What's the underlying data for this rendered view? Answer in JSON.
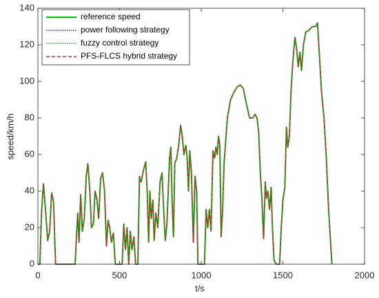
{
  "chart_data": {
    "type": "line",
    "xlabel": "t/s",
    "ylabel": "speed/km/h",
    "xlim": [
      0,
      2000
    ],
    "xticks": [
      0,
      500,
      1000,
      1500,
      2000
    ],
    "ylim": [
      0,
      140
    ],
    "yticks": [
      0,
      20,
      40,
      60,
      80,
      100,
      120,
      140
    ],
    "grid": false,
    "legend": "upper left",
    "x": [
      0,
      12,
      22,
      34,
      48,
      60,
      72,
      84,
      96,
      108,
      228,
      236,
      244,
      252,
      262,
      272,
      284,
      296,
      306,
      318,
      328,
      340,
      350,
      362,
      372,
      384,
      396,
      408,
      420,
      430,
      440,
      450,
      462,
      474,
      516,
      526,
      536,
      546,
      556,
      566,
      576,
      588,
      598,
      612,
      622,
      632,
      648,
      660,
      670,
      678,
      686,
      694,
      704,
      712,
      722,
      734,
      748,
      760,
      770,
      780,
      790,
      806,
      814,
      822,
      830,
      838,
      850,
      862,
      874,
      884,
      894,
      906,
      914,
      922,
      930,
      940,
      952,
      962,
      972,
      980,
      1020,
      1030,
      1040,
      1050,
      1060,
      1072,
      1082,
      1090,
      1098,
      1106,
      1114,
      1122,
      1130,
      1140,
      1160,
      1180,
      1200,
      1220,
      1240,
      1258,
      1276,
      1296,
      1316,
      1330,
      1342,
      1352,
      1362,
      1372,
      1382,
      1392,
      1400,
      1408,
      1418,
      1428,
      1436,
      1446,
      1460,
      1480,
      1490,
      1500,
      1512,
      1522,
      1530,
      1540,
      1550,
      1562,
      1574,
      1584,
      1594,
      1604,
      1614,
      1626,
      1640,
      1660,
      1680,
      1700,
      1712,
      1720,
      1736,
      1752,
      1766,
      1780,
      1800
    ],
    "series": [
      {
        "name": "reference speed",
        "color": "#00c800",
        "style": "solid",
        "values": [
          0,
          0,
          28,
          44,
          28,
          13,
          18,
          39,
          34,
          0,
          0,
          15,
          28,
          12,
          38,
          18,
          25,
          48,
          55,
          40,
          20,
          22,
          40,
          35,
          25,
          47,
          50,
          40,
          10,
          24,
          20,
          12,
          17,
          0,
          0,
          22,
          8,
          20,
          0,
          18,
          8,
          15,
          0,
          0,
          48,
          45,
          52,
          56,
          38,
          12,
          40,
          25,
          35,
          13,
          28,
          20,
          45,
          50,
          30,
          13,
          22,
          58,
          64,
          34,
          15,
          55,
          58,
          65,
          76,
          70,
          60,
          65,
          58,
          40,
          62,
          50,
          12,
          48,
          40,
          0,
          0,
          30,
          20,
          30,
          18,
          62,
          58,
          64,
          60,
          70,
          65,
          15,
          28,
          55,
          80,
          90,
          94,
          97,
          98,
          96,
          88,
          80,
          80,
          82,
          80,
          72,
          50,
          35,
          14,
          45,
          36,
          40,
          30,
          42,
          20,
          2,
          0,
          0,
          20,
          35,
          42,
          75,
          64,
          70,
          95,
          112,
          124,
          118,
          108,
          116,
          106,
          120,
          127,
          128,
          130,
          130,
          132,
          120,
          95,
          80,
          58,
          30,
          0
        ]
      },
      {
        "name": "power following strategy",
        "color": "#1a1aa8",
        "style": "dotted",
        "values": [
          0,
          0,
          28,
          44,
          28,
          13,
          18,
          39,
          34,
          0,
          0,
          15,
          28,
          12,
          38,
          18,
          25,
          48,
          55,
          40,
          20,
          22,
          40,
          35,
          25,
          47,
          50,
          40,
          10,
          24,
          20,
          12,
          17,
          0,
          0,
          22,
          8,
          20,
          0,
          18,
          8,
          15,
          0,
          0,
          48,
          45,
          52,
          56,
          38,
          12,
          40,
          25,
          35,
          13,
          28,
          20,
          45,
          50,
          30,
          13,
          22,
          58,
          64,
          34,
          15,
          55,
          58,
          65,
          76,
          70,
          60,
          65,
          58,
          40,
          62,
          50,
          12,
          48,
          40,
          0,
          0,
          30,
          20,
          30,
          18,
          62,
          58,
          64,
          60,
          70,
          65,
          15,
          28,
          55,
          80,
          90,
          94,
          97,
          98,
          96,
          88,
          80,
          80,
          82,
          80,
          72,
          50,
          35,
          14,
          45,
          36,
          40,
          30,
          42,
          20,
          2,
          0,
          0,
          20,
          35,
          42,
          75,
          64,
          70,
          95,
          112,
          124,
          118,
          108,
          116,
          106,
          120,
          127,
          128,
          130,
          130,
          132,
          120,
          95,
          80,
          58,
          30,
          0
        ]
      },
      {
        "name": "fuzzy control strategy",
        "color": "#2ea02e",
        "style": "dotted",
        "values": [
          0,
          0,
          28,
          44,
          28,
          13,
          18,
          39,
          34,
          0,
          0,
          15,
          28,
          12,
          38,
          18,
          25,
          48,
          55,
          40,
          20,
          22,
          40,
          35,
          25,
          47,
          50,
          40,
          10,
          24,
          20,
          12,
          17,
          0,
          0,
          22,
          8,
          20,
          0,
          18,
          8,
          15,
          0,
          0,
          48,
          45,
          52,
          56,
          38,
          12,
          40,
          25,
          35,
          13,
          28,
          20,
          45,
          50,
          30,
          13,
          22,
          58,
          64,
          34,
          15,
          55,
          58,
          65,
          76,
          70,
          60,
          65,
          58,
          40,
          62,
          50,
          12,
          48,
          40,
          0,
          0,
          30,
          20,
          30,
          18,
          62,
          58,
          64,
          60,
          70,
          65,
          15,
          28,
          55,
          80,
          90,
          94,
          97,
          98,
          96,
          88,
          80,
          80,
          82,
          80,
          72,
          50,
          35,
          14,
          45,
          36,
          40,
          30,
          42,
          20,
          2,
          0,
          0,
          20,
          35,
          42,
          75,
          64,
          70,
          95,
          112,
          124,
          118,
          108,
          116,
          106,
          120,
          127,
          128,
          130,
          130,
          132,
          120,
          95,
          80,
          58,
          30,
          0
        ]
      },
      {
        "name": "PFS-FLCS hybrid strategy",
        "color": "#b5322a",
        "style": "dashed",
        "values": [
          0,
          0,
          28,
          44,
          28,
          13,
          18,
          39,
          34,
          0,
          0,
          15,
          28,
          12,
          38,
          18,
          25,
          48,
          55,
          40,
          20,
          22,
          40,
          35,
          25,
          47,
          50,
          40,
          10,
          24,
          20,
          12,
          17,
          0,
          0,
          22,
          8,
          20,
          0,
          18,
          8,
          15,
          0,
          0,
          48,
          45,
          52,
          56,
          38,
          12,
          40,
          25,
          35,
          13,
          28,
          20,
          45,
          50,
          30,
          13,
          22,
          58,
          64,
          34,
          15,
          55,
          58,
          65,
          76,
          70,
          60,
          65,
          58,
          40,
          62,
          50,
          12,
          48,
          40,
          0,
          0,
          30,
          20,
          30,
          18,
          62,
          58,
          64,
          60,
          70,
          65,
          15,
          28,
          55,
          80,
          90,
          94,
          97,
          98,
          96,
          88,
          80,
          80,
          82,
          80,
          72,
          50,
          35,
          14,
          45,
          36,
          40,
          30,
          42,
          20,
          2,
          0,
          0,
          20,
          35,
          42,
          75,
          64,
          70,
          95,
          112,
          124,
          118,
          108,
          116,
          106,
          120,
          127,
          128,
          130,
          130,
          132,
          120,
          95,
          80,
          58,
          30,
          0
        ]
      }
    ]
  }
}
